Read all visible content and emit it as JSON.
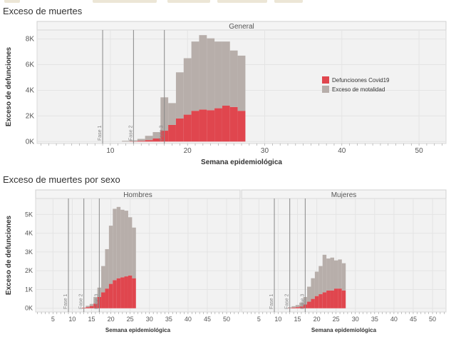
{
  "sections": {
    "general_title": "Exceso de muertes",
    "sex_title": "Exceso de muertes por sexo"
  },
  "colors": {
    "covid": "#e0464e",
    "excess": "#b7aeaa",
    "phase_line": "#888888",
    "grid": "#e4e4e4",
    "panel_bg": "#f2f2f2",
    "header_bg": "#f4f4f4"
  },
  "chart_data": [
    {
      "type": "bar",
      "stacked": true,
      "panel": "General",
      "xlabel": "Semana epidemiológica",
      "ylabel": "Exceso de defunciones",
      "xlim": [
        0.5,
        53.5
      ],
      "ylim": [
        -150,
        8700
      ],
      "xticks": [
        {
          "v": 10,
          "label": "10"
        },
        {
          "v": 20,
          "label": "20"
        },
        {
          "v": 30,
          "label": "30"
        },
        {
          "v": 40,
          "label": "40"
        },
        {
          "v": 50,
          "label": "50"
        }
      ],
      "yticks": [
        {
          "v": 0,
          "label": "0K"
        },
        {
          "v": 2000,
          "label": "2K"
        },
        {
          "v": 4000,
          "label": "4K"
        },
        {
          "v": 6000,
          "label": "6K"
        },
        {
          "v": 8000,
          "label": "8K"
        }
      ],
      "legend_position": "right",
      "weeks": [
        12,
        13,
        14,
        15,
        16,
        17,
        18,
        19,
        20,
        21,
        22,
        23,
        24,
        25,
        26,
        27
      ],
      "series": [
        {
          "name": "Defuncioones Covid19",
          "color": "#e0464e",
          "values": [
            0,
            20,
            60,
            120,
            240,
            850,
            1300,
            1800,
            2100,
            2400,
            2500,
            2450,
            2600,
            2800,
            2700,
            2400
          ]
        },
        {
          "name": "Exceso de motalidad",
          "color": "#b7aeaa",
          "values": [
            60,
            80,
            150,
            330,
            500,
            2600,
            1700,
            3600,
            4400,
            5400,
            5800,
            5600,
            5200,
            5000,
            4400,
            4300
          ]
        }
      ],
      "phase_lines": [
        {
          "week": 9,
          "label": "Fase 1"
        },
        {
          "week": 13,
          "label": "Fase 2"
        },
        {
          "week": 17,
          "label": "Fase 3"
        }
      ]
    },
    {
      "type": "bar",
      "stacked": true,
      "panel": "Hombres",
      "xlabel": "Semana epidemiológica",
      "ylabel": "Exceso de defunciones",
      "xlim": [
        0.5,
        53.5
      ],
      "ylim": [
        -200,
        5850
      ],
      "xticks": [
        {
          "v": 5,
          "label": "5"
        },
        {
          "v": 10,
          "label": "10"
        },
        {
          "v": 15,
          "label": "15"
        },
        {
          "v": 20,
          "label": "20"
        },
        {
          "v": 25,
          "label": "25"
        },
        {
          "v": 30,
          "label": "30"
        },
        {
          "v": 35,
          "label": "35"
        },
        {
          "v": 40,
          "label": "40"
        },
        {
          "v": 45,
          "label": "45"
        },
        {
          "v": 50,
          "label": "50"
        }
      ],
      "yticks": [
        {
          "v": 0,
          "label": "0K"
        },
        {
          "v": 1000,
          "label": "1K"
        },
        {
          "v": 2000,
          "label": "2K"
        },
        {
          "v": 3000,
          "label": "3K"
        },
        {
          "v": 4000,
          "label": "4K"
        },
        {
          "v": 5000,
          "label": "5K"
        }
      ],
      "weeks": [
        12,
        13,
        14,
        15,
        16,
        17,
        18,
        19,
        20,
        21,
        22,
        23,
        24,
        25,
        26
      ],
      "series": [
        {
          "name": "Defuncioones Covid19",
          "color": "#e0464e",
          "values": [
            0,
            30,
            60,
            120,
            250,
            600,
            850,
            1050,
            1300,
            1500,
            1600,
            1650,
            1700,
            1750,
            1600
          ]
        },
        {
          "name": "Exceso de motalidad",
          "color": "#b7aeaa",
          "values": [
            0,
            0,
            70,
            110,
            350,
            500,
            1400,
            2100,
            3100,
            3800,
            3800,
            3600,
            3500,
            3100,
            2700
          ]
        }
      ],
      "phase_lines": [
        {
          "week": 9,
          "label": "Fase 1"
        },
        {
          "week": 13,
          "label": "Fase 2"
        },
        {
          "week": 17,
          "label": "Fase 3"
        }
      ]
    },
    {
      "type": "bar",
      "stacked": true,
      "panel": "Mujeres",
      "xlabel": "Semana epidemiológica",
      "ylabel": "",
      "xlim": [
        0.5,
        53.5
      ],
      "ylim": [
        -200,
        5850
      ],
      "xticks": [
        {
          "v": 5,
          "label": "5"
        },
        {
          "v": 10,
          "label": "10"
        },
        {
          "v": 15,
          "label": "15"
        },
        {
          "v": 20,
          "label": "20"
        },
        {
          "v": 25,
          "label": "25"
        },
        {
          "v": 30,
          "label": "30"
        },
        {
          "v": 35,
          "label": "35"
        },
        {
          "v": 40,
          "label": "40"
        },
        {
          "v": 45,
          "label": "45"
        },
        {
          "v": 50,
          "label": "50"
        }
      ],
      "yticks": [],
      "weeks": [
        13,
        14,
        15,
        16,
        17,
        18,
        19,
        20,
        21,
        22,
        23,
        24,
        25,
        26,
        27
      ],
      "series": [
        {
          "name": "Defuncioones Covid19",
          "color": "#e0464e",
          "values": [
            20,
            40,
            60,
            100,
            200,
            350,
            500,
            650,
            750,
            850,
            950,
            950,
            1050,
            1050,
            950
          ]
        },
        {
          "name": "Exceso de motalidad",
          "color": "#b7aeaa",
          "values": [
            30,
            70,
            110,
            200,
            400,
            800,
            1100,
            1300,
            1500,
            2000,
            1700,
            1750,
            1500,
            1550,
            1450
          ]
        }
      ],
      "phase_lines": [
        {
          "week": 9,
          "label": "Fase 1"
        },
        {
          "week": 13,
          "label": "Fase 2"
        },
        {
          "week": 17,
          "label": "Fase 3"
        }
      ]
    }
  ]
}
